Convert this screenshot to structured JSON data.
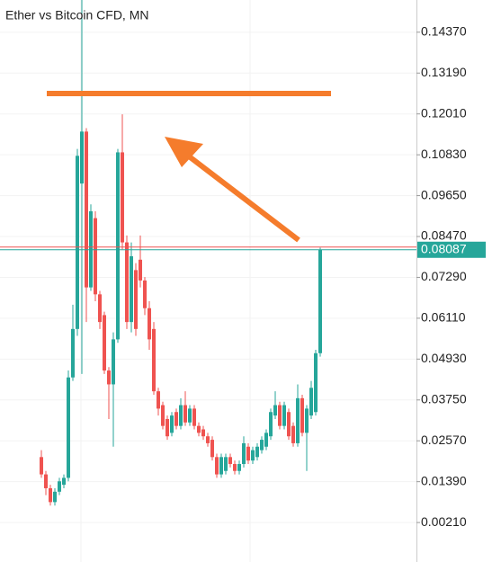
{
  "chart_data": {
    "type": "candlestick",
    "title": "Ether vs Bitcoin CFD, MN",
    "open": [
      0.021,
      0.016,
      0.012,
      0.008,
      0.011,
      0.013,
      0.015,
      0.044,
      0.058,
      0.1,
      0.115,
      0.07,
      0.09,
      0.068,
      0.062,
      0.046,
      0.042,
      0.055,
      0.109,
      0.083,
      0.06,
      0.075,
      0.078,
      0.072,
      0.064,
      0.058,
      0.04,
      0.036,
      0.032,
      0.028,
      0.034,
      0.03,
      0.036,
      0.031,
      0.035,
      0.03,
      0.029,
      0.027,
      0.026,
      0.021,
      0.016,
      0.017,
      0.021,
      0.019,
      0.017,
      0.019,
      0.024,
      0.02,
      0.021,
      0.023,
      0.024,
      0.027,
      0.033,
      0.036,
      0.03,
      0.034,
      0.03,
      0.025,
      0.038,
      0.028,
      0.033,
      0.034,
      0.051
    ],
    "high": [
      0.023,
      0.017,
      0.013,
      0.012,
      0.015,
      0.016,
      0.046,
      0.065,
      0.11,
      0.153,
      0.116,
      0.094,
      0.092,
      0.069,
      0.063,
      0.047,
      0.057,
      0.11,
      0.12,
      0.085,
      0.083,
      0.077,
      0.085,
      0.073,
      0.066,
      0.06,
      0.041,
      0.037,
      0.033,
      0.034,
      0.035,
      0.038,
      0.04,
      0.036,
      0.036,
      0.031,
      0.03,
      0.028,
      0.027,
      0.022,
      0.022,
      0.022,
      0.022,
      0.02,
      0.02,
      0.027,
      0.025,
      0.024,
      0.025,
      0.027,
      0.029,
      0.035,
      0.04,
      0.037,
      0.037,
      0.035,
      0.031,
      0.042,
      0.039,
      0.036,
      0.043,
      0.052,
      0.0815
    ],
    "low": [
      0.015,
      0.01,
      0.007,
      0.007,
      0.01,
      0.012,
      0.014,
      0.043,
      0.056,
      0.045,
      0.06,
      0.069,
      0.066,
      0.058,
      0.045,
      0.032,
      0.024,
      0.054,
      0.081,
      0.058,
      0.057,
      0.056,
      0.07,
      0.062,
      0.052,
      0.039,
      0.033,
      0.029,
      0.026,
      0.027,
      0.029,
      0.029,
      0.03,
      0.03,
      0.029,
      0.027,
      0.026,
      0.024,
      0.02,
      0.015,
      0.015,
      0.016,
      0.018,
      0.016,
      0.016,
      0.018,
      0.019,
      0.019,
      0.02,
      0.022,
      0.023,
      0.026,
      0.032,
      0.029,
      0.029,
      0.026,
      0.024,
      0.024,
      0.027,
      0.017,
      0.032,
      0.033,
      0.05
    ],
    "close": [
      0.016,
      0.012,
      0.008,
      0.011,
      0.014,
      0.015,
      0.044,
      0.058,
      0.108,
      0.115,
      0.07,
      0.092,
      0.068,
      0.06,
      0.046,
      0.042,
      0.055,
      0.109,
      0.083,
      0.06,
      0.079,
      0.058,
      0.072,
      0.064,
      0.055,
      0.04,
      0.035,
      0.03,
      0.027,
      0.033,
      0.03,
      0.036,
      0.031,
      0.035,
      0.03,
      0.028,
      0.027,
      0.025,
      0.021,
      0.016,
      0.021,
      0.021,
      0.019,
      0.017,
      0.019,
      0.025,
      0.02,
      0.023,
      0.024,
      0.026,
      0.028,
      0.034,
      0.036,
      0.03,
      0.036,
      0.027,
      0.025,
      0.038,
      0.028,
      0.035,
      0.041,
      0.051,
      0.08087
    ],
    "up_color": "#26a69a",
    "down_color": "#ef5350",
    "ylim": [
      -0.0093,
      0.153
    ],
    "yticks": [
      {
        "value": 0.0021,
        "label": "0.00210"
      },
      {
        "value": 0.0139,
        "label": "0.01390"
      },
      {
        "value": 0.0257,
        "label": "0.02570"
      },
      {
        "value": 0.0375,
        "label": "0.03750"
      },
      {
        "value": 0.0493,
        "label": "0.04930"
      },
      {
        "value": 0.0611,
        "label": "0.06110"
      },
      {
        "value": 0.0729,
        "label": "0.07290"
      },
      {
        "value": 0.0847,
        "label": "0.08470"
      },
      {
        "value": 0.0965,
        "label": "0.09650"
      },
      {
        "value": 0.1083,
        "label": "0.10830"
      },
      {
        "value": 0.1201,
        "label": "0.12010"
      },
      {
        "value": 0.1319,
        "label": "0.13190"
      },
      {
        "value": 0.1437,
        "label": "0.14370"
      }
    ],
    "grid": true,
    "current_price": 0.08087
  }
}
